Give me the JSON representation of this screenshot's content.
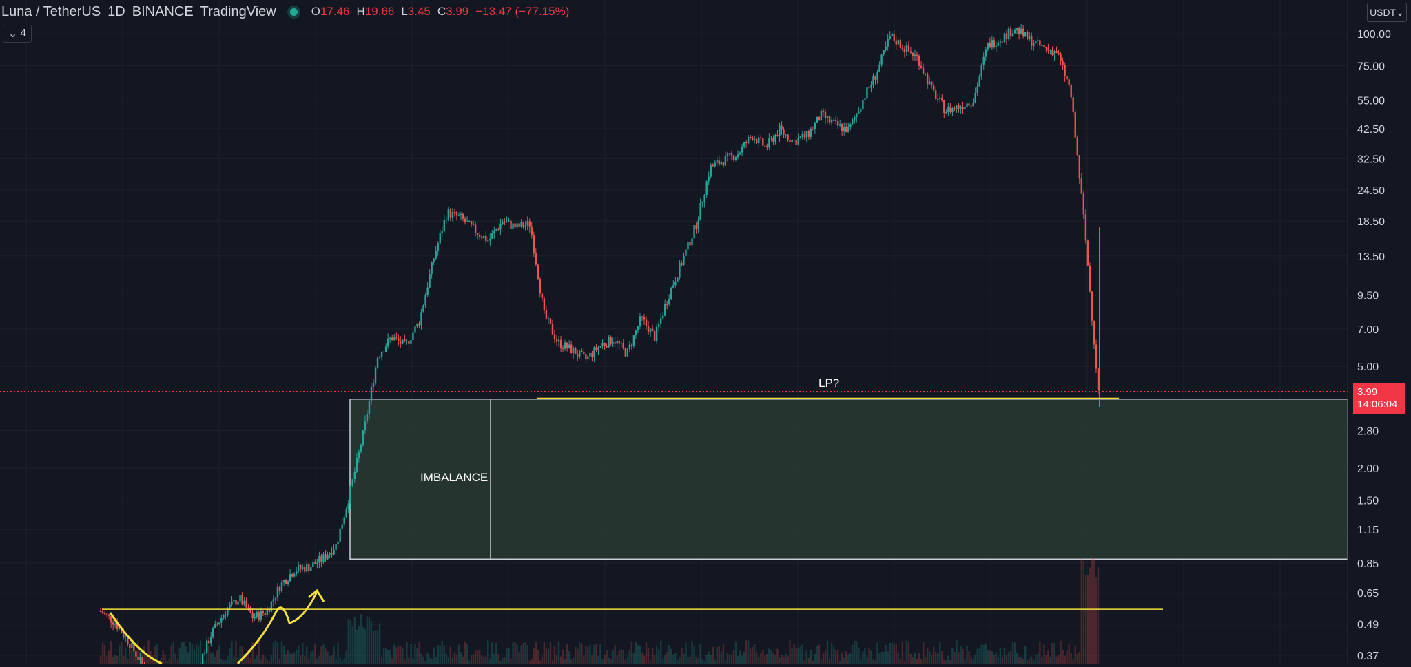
{
  "header": {
    "symbol": "Luna / TetherUS",
    "interval": "1D",
    "exchange": "BINANCE",
    "source": "TradingView",
    "ohlc": {
      "o_label": "O",
      "o_value": "17.46",
      "h_label": "H",
      "h_value": "19.66",
      "l_label": "L",
      "l_value": "3.45",
      "c_label": "C",
      "c_value": "3.99",
      "change": "−13.47 (−77.15%)"
    },
    "indicator_count": "4",
    "currency": "USDT"
  },
  "price_tag": {
    "price": "3.99",
    "countdown": "14:06:04"
  },
  "annotations": {
    "imbalance": "IMBALANCE",
    "lp": "LP?"
  },
  "colors": {
    "background": "#131722",
    "up": "#26a69a",
    "down": "#ef5350",
    "zone_fill": "#2a3a33",
    "highlight_line": "#f5e13a",
    "price_line": "#f23645"
  },
  "chart_data": {
    "type": "candlestick",
    "scale": "log",
    "y_ticks": [
      "100.00",
      "75.00",
      "55.00",
      "42.50",
      "32.50",
      "24.50",
      "18.50",
      "13.50",
      "9.50",
      "7.00",
      "5.00",
      "2.80",
      "2.00",
      "1.50",
      "1.15",
      "0.85",
      "0.65",
      "0.49",
      "0.37"
    ],
    "grid": true,
    "last_price": 3.99,
    "price_path": [
      0.55,
      0.5,
      0.42,
      0.34,
      0.28,
      0.26,
      0.27,
      0.33,
      0.45,
      0.55,
      0.62,
      0.52,
      0.55,
      0.7,
      0.8,
      0.82,
      0.88,
      1.0,
      1.6,
      2.8,
      5.5,
      6.5,
      6.0,
      7.5,
      13.0,
      20.0,
      19.0,
      17.0,
      15.5,
      18.5,
      17.5,
      18.0,
      8.0,
      6.2,
      5.8,
      5.3,
      6.0,
      6.4,
      5.6,
      7.7,
      6.5,
      9.5,
      13.0,
      18.0,
      30.0,
      32.0,
      34.0,
      40.0,
      36.0,
      42.0,
      38.0,
      40.0,
      48.0,
      44.0,
      42.0,
      55.0,
      70.0,
      98.0,
      88.0,
      80.0,
      60.0,
      50.0,
      52.0,
      55.0,
      90.0,
      96.0,
      105.0,
      95.0,
      88.0,
      85.0,
      60.0,
      18.0,
      3.99
    ],
    "zones": [
      {
        "label": "IMBALANCE",
        "from": 0.88,
        "to": 3.72
      }
    ],
    "levels": [
      {
        "label": "LP?",
        "value": 3.75
      },
      {
        "label": "",
        "value": 0.56
      }
    ]
  }
}
